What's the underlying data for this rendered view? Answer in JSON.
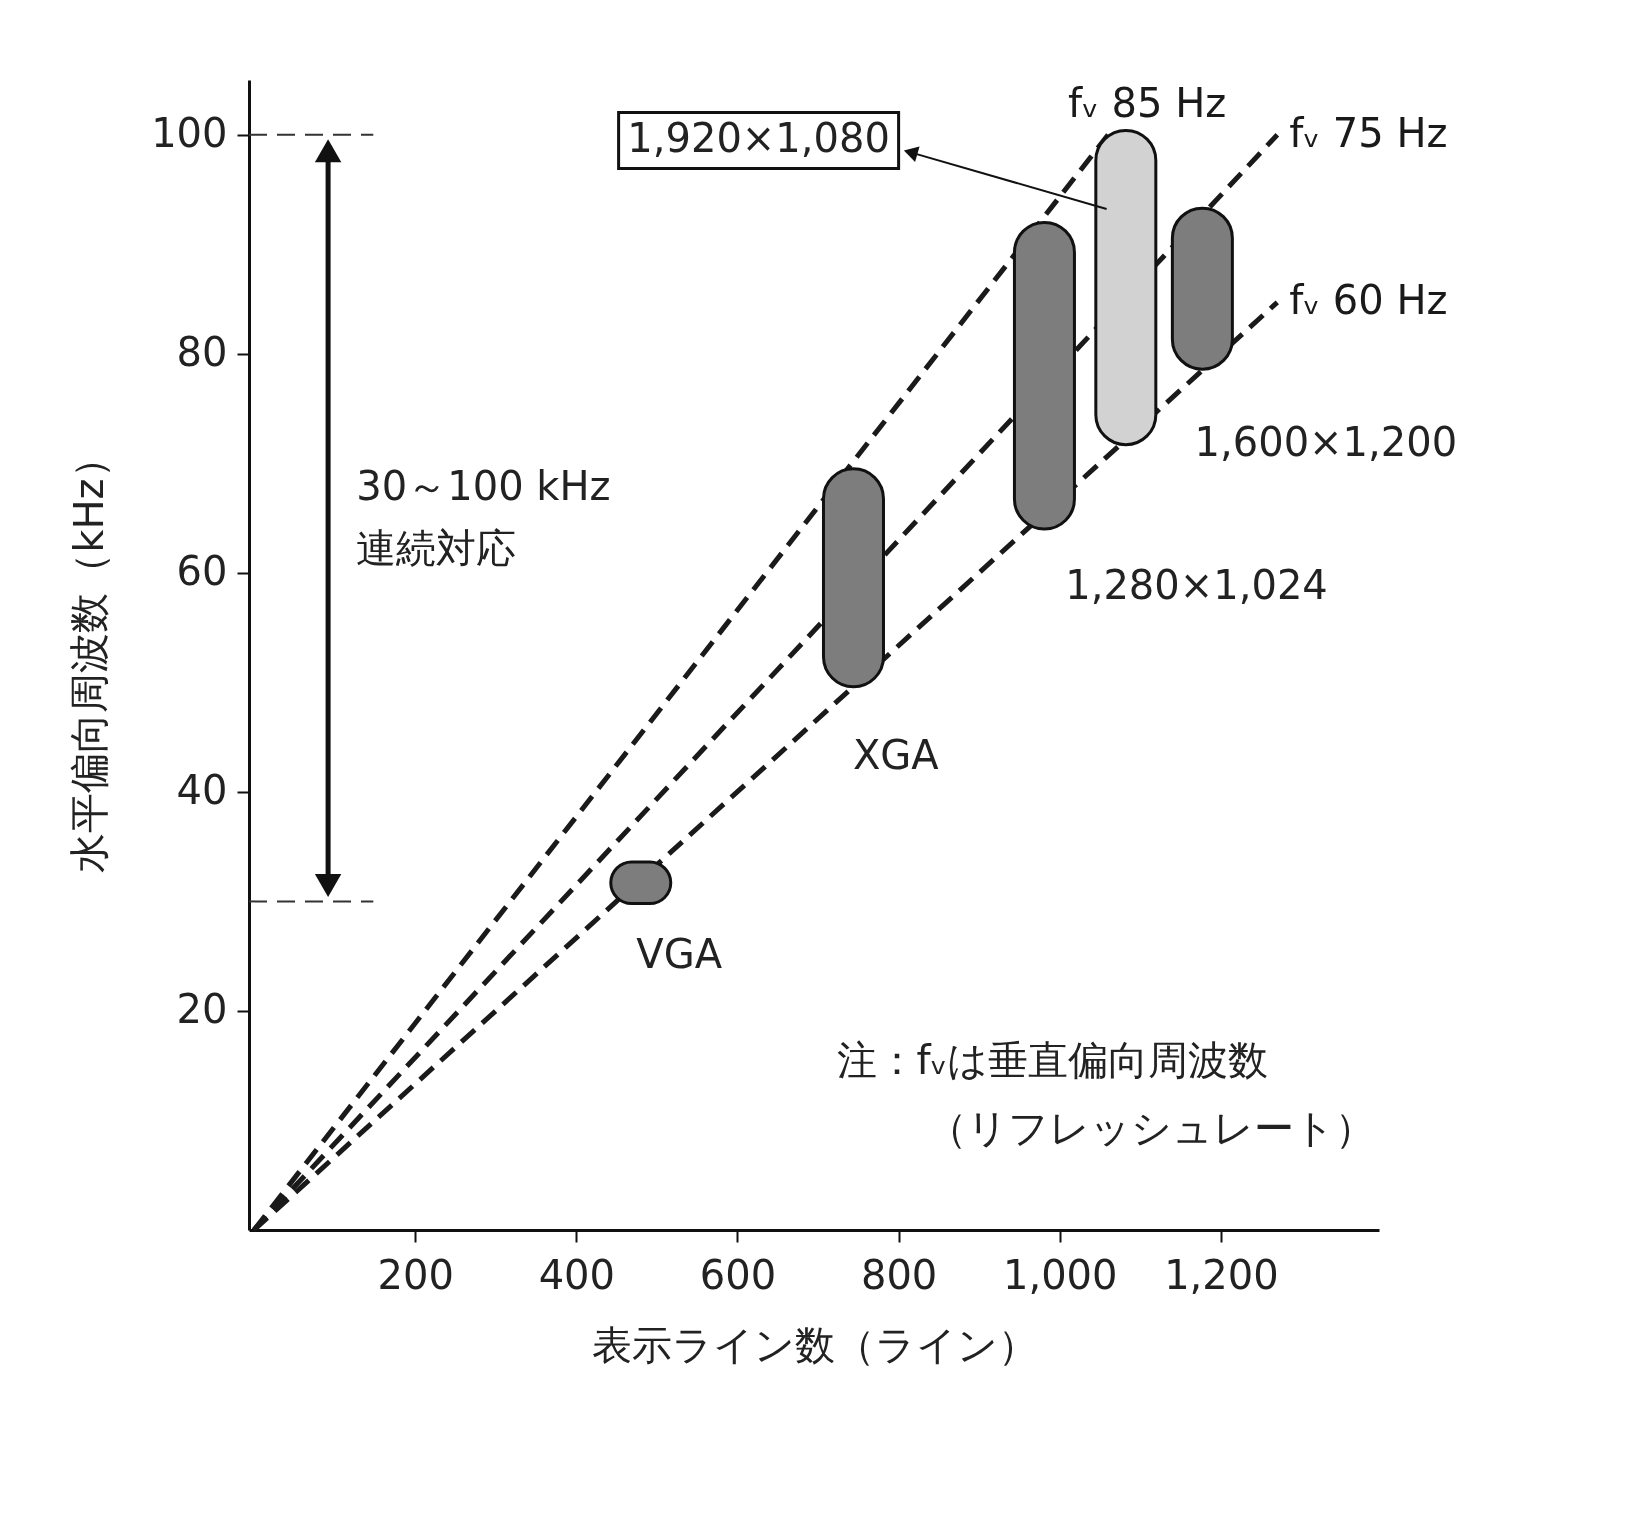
{
  "chart_data": {
    "type": "line",
    "xlabel": "表示ライン数（ライン）",
    "ylabel": "水平偏向周波数（kHz）",
    "xlim": [
      0,
      1390
    ],
    "ylim": [
      0,
      105
    ],
    "xticks": [
      200,
      400,
      600,
      800,
      {
        "value": 1000,
        "label": "1,000"
      },
      {
        "value": 1200,
        "label": "1,200"
      }
    ],
    "yticks": [
      20,
      40,
      60,
      80,
      100
    ],
    "line_style": "dashed",
    "series": [
      {
        "name": "fᵥ 85 Hz",
        "color": "#1a1a1a",
        "x": [
          0,
          1060
        ],
        "values": [
          0,
          100
        ]
      },
      {
        "name": "fᵥ 75 Hz",
        "color": "#1a1a1a",
        "x": [
          0,
          1270
        ],
        "values": [
          0,
          100
        ]
      },
      {
        "name": "fᵥ 60 Hz",
        "color": "#1a1a1a",
        "x": [
          0,
          1270
        ],
        "values": [
          0,
          84.7
        ]
      },
      {
        "type": "bar",
        "x": [
          480,
          744,
          981,
          1082,
          1177
        ],
        "base": [
          29.8,
          49.6,
          64,
          71.7,
          78.6
        ],
        "values": [
          3.8,
          19.9,
          28,
          28.7,
          14.7
        ],
        "colors": [
          "#7d7d7d",
          "#7d7d7d",
          "#7d7d7d",
          "#d2d2d2",
          "#7d7d7d"
        ]
      }
    ],
    "ref_lines": [
      {
        "axis": "y",
        "value": 100,
        "line_style": "dashed"
      },
      {
        "axis": "y",
        "value": 30,
        "line_style": "dashed"
      }
    ],
    "annotations": [
      "30～100 kHz",
      "連続対応",
      "注：fᵥは垂直偏向周波数",
      "（リフレッシュレート）",
      "VGA",
      "XGA",
      "1,280×1,024",
      "1,600×1,200",
      "1,920×1,080"
    ]
  }
}
